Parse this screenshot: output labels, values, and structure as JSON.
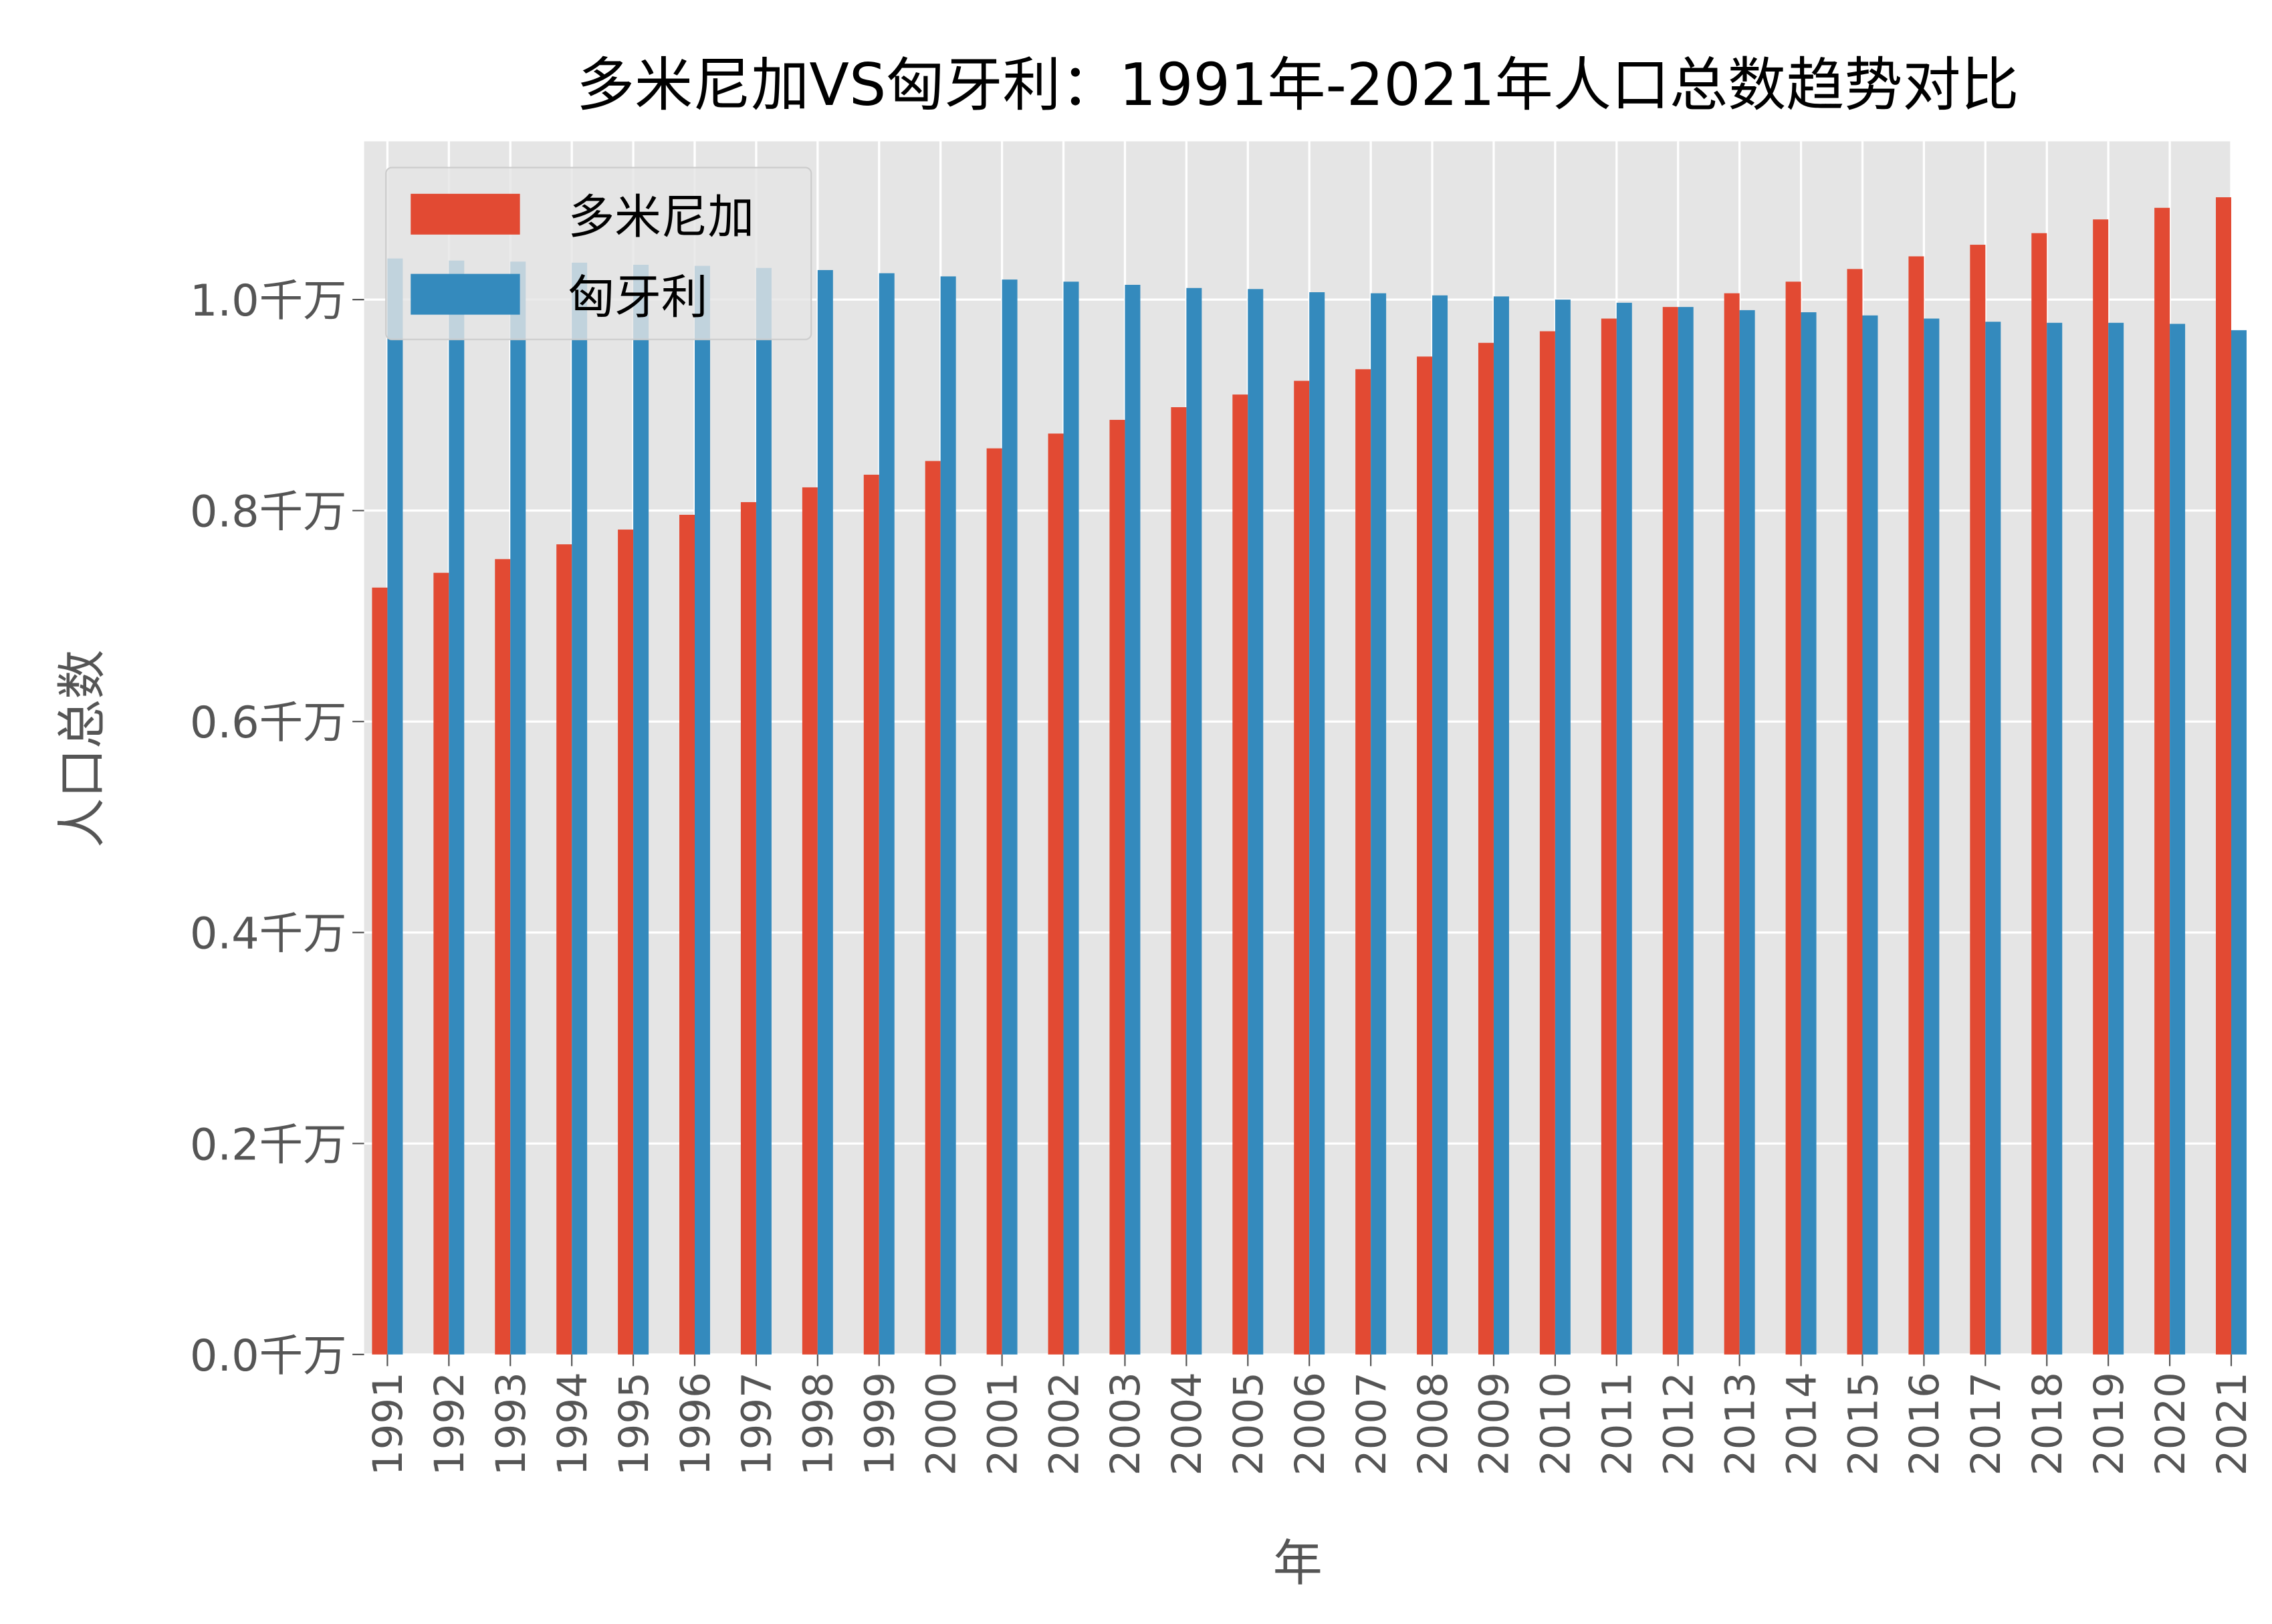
{
  "chart_data": {
    "type": "bar",
    "title": "多米尼加VS匈牙利：1991年-2021年人口总数趋势对比",
    "xlabel": "年",
    "ylabel": "人口总数",
    "ylim": [
      0,
      1.15
    ],
    "yticks": [
      0.0,
      0.2,
      0.4,
      0.6,
      0.8,
      1.0
    ],
    "ytick_labels": [
      "0.0千万",
      "0.2千万",
      "0.4千万",
      "0.6千万",
      "0.8千万",
      "1.0千万"
    ],
    "grid": true,
    "legend_position": "top-left",
    "categories": [
      "1991",
      "1992",
      "1993",
      "1994",
      "1995",
      "1996",
      "1997",
      "1998",
      "1999",
      "2000",
      "2001",
      "2002",
      "2003",
      "2004",
      "2005",
      "2006",
      "2007",
      "2008",
      "2009",
      "2010",
      "2011",
      "2012",
      "2013",
      "2014",
      "2015",
      "2016",
      "2017",
      "2018",
      "2019",
      "2020",
      "2021"
    ],
    "series": [
      {
        "name": "多米尼加",
        "color": "#E24A33",
        "values": [
          0.727,
          0.741,
          0.754,
          0.768,
          0.782,
          0.796,
          0.808,
          0.822,
          0.834,
          0.847,
          0.859,
          0.873,
          0.886,
          0.898,
          0.91,
          0.923,
          0.934,
          0.946,
          0.959,
          0.97,
          0.982,
          0.993,
          1.006,
          1.017,
          1.029,
          1.041,
          1.052,
          1.063,
          1.076,
          1.087,
          1.097
        ]
      },
      {
        "name": "匈牙利",
        "color": "#348ABD",
        "values": [
          1.039,
          1.037,
          1.036,
          1.035,
          1.033,
          1.032,
          1.03,
          1.028,
          1.025,
          1.022,
          1.019,
          1.017,
          1.014,
          1.011,
          1.01,
          1.007,
          1.006,
          1.004,
          1.003,
          1.0,
          0.997,
          0.993,
          0.99,
          0.988,
          0.985,
          0.982,
          0.979,
          0.978,
          0.978,
          0.977,
          0.971
        ]
      }
    ]
  }
}
